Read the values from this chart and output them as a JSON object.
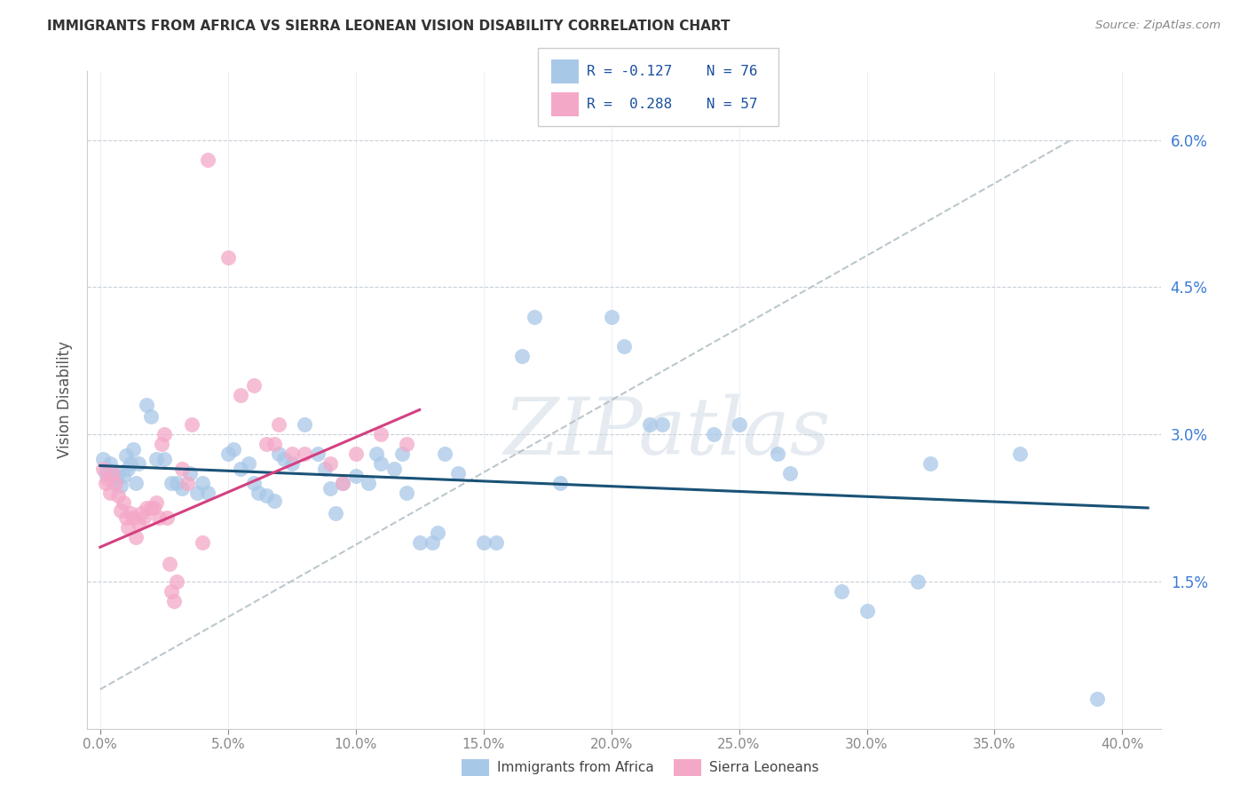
{
  "title": "IMMIGRANTS FROM AFRICA VS SIERRA LEONEAN VISION DISABILITY CORRELATION CHART",
  "source": "Source: ZipAtlas.com",
  "xlabel_ticks": [
    "0.0%",
    "5.0%",
    "10.0%",
    "15.0%",
    "20.0%",
    "25.0%",
    "30.0%",
    "35.0%",
    "40.0%"
  ],
  "xlabel_vals": [
    0.0,
    0.05,
    0.1,
    0.15,
    0.2,
    0.25,
    0.3,
    0.35,
    0.4
  ],
  "ylabel_ticks": [
    "1.5%",
    "3.0%",
    "4.5%",
    "6.0%"
  ],
  "ylabel_vals": [
    0.015,
    0.03,
    0.045,
    0.06
  ],
  "ylabel_label": "Vision Disability",
  "xlim": [
    -0.005,
    0.415
  ],
  "ylim": [
    0.0,
    0.067
  ],
  "watermark": "ZIPatlas",
  "blue_color": "#a8c8e8",
  "pink_color": "#f4a8c8",
  "trendline_blue_color": "#1a5276",
  "trendline_pink_color": "#d44080",
  "trendline_dashed_color": "#b0bec5",
  "blue_trendline": [
    [
      0.0,
      0.0268
    ],
    [
      0.41,
      0.0225
    ]
  ],
  "pink_trendline": [
    [
      0.0,
      0.0185
    ],
    [
      0.125,
      0.0325
    ]
  ],
  "dashed_line": [
    [
      0.0,
      0.004
    ],
    [
      0.38,
      0.06
    ]
  ],
  "blue_scatter": [
    [
      0.001,
      0.0275
    ],
    [
      0.002,
      0.026
    ],
    [
      0.003,
      0.0265
    ],
    [
      0.004,
      0.027
    ],
    [
      0.005,
      0.026
    ],
    [
      0.006,
      0.0255
    ],
    [
      0.007,
      0.026
    ],
    [
      0.008,
      0.0248
    ],
    [
      0.009,
      0.0258
    ],
    [
      0.01,
      0.0278
    ],
    [
      0.011,
      0.0265
    ],
    [
      0.012,
      0.027
    ],
    [
      0.013,
      0.0285
    ],
    [
      0.014,
      0.025
    ],
    [
      0.015,
      0.027
    ],
    [
      0.018,
      0.033
    ],
    [
      0.02,
      0.0318
    ],
    [
      0.022,
      0.0275
    ],
    [
      0.025,
      0.0275
    ],
    [
      0.028,
      0.025
    ],
    [
      0.03,
      0.025
    ],
    [
      0.032,
      0.0245
    ],
    [
      0.035,
      0.026
    ],
    [
      0.038,
      0.024
    ],
    [
      0.04,
      0.025
    ],
    [
      0.042,
      0.024
    ],
    [
      0.05,
      0.028
    ],
    [
      0.052,
      0.0285
    ],
    [
      0.055,
      0.0265
    ],
    [
      0.058,
      0.027
    ],
    [
      0.06,
      0.025
    ],
    [
      0.062,
      0.024
    ],
    [
      0.065,
      0.0238
    ],
    [
      0.068,
      0.0232
    ],
    [
      0.07,
      0.028
    ],
    [
      0.072,
      0.0275
    ],
    [
      0.075,
      0.027
    ],
    [
      0.08,
      0.031
    ],
    [
      0.085,
      0.028
    ],
    [
      0.088,
      0.0265
    ],
    [
      0.09,
      0.0245
    ],
    [
      0.092,
      0.022
    ],
    [
      0.095,
      0.025
    ],
    [
      0.1,
      0.0258
    ],
    [
      0.105,
      0.025
    ],
    [
      0.108,
      0.028
    ],
    [
      0.11,
      0.027
    ],
    [
      0.115,
      0.0265
    ],
    [
      0.118,
      0.028
    ],
    [
      0.12,
      0.024
    ],
    [
      0.125,
      0.019
    ],
    [
      0.13,
      0.019
    ],
    [
      0.132,
      0.02
    ],
    [
      0.135,
      0.028
    ],
    [
      0.14,
      0.026
    ],
    [
      0.15,
      0.019
    ],
    [
      0.155,
      0.019
    ],
    [
      0.165,
      0.038
    ],
    [
      0.17,
      0.042
    ],
    [
      0.18,
      0.025
    ],
    [
      0.2,
      0.042
    ],
    [
      0.205,
      0.039
    ],
    [
      0.215,
      0.031
    ],
    [
      0.22,
      0.031
    ],
    [
      0.24,
      0.03
    ],
    [
      0.25,
      0.031
    ],
    [
      0.265,
      0.028
    ],
    [
      0.27,
      0.026
    ],
    [
      0.29,
      0.014
    ],
    [
      0.3,
      0.012
    ],
    [
      0.32,
      0.015
    ],
    [
      0.325,
      0.027
    ],
    [
      0.36,
      0.028
    ],
    [
      0.39,
      0.003
    ]
  ],
  "pink_scatter": [
    [
      0.001,
      0.0265
    ],
    [
      0.002,
      0.025
    ],
    [
      0.003,
      0.0255
    ],
    [
      0.004,
      0.024
    ],
    [
      0.005,
      0.026
    ],
    [
      0.006,
      0.025
    ],
    [
      0.007,
      0.0238
    ],
    [
      0.008,
      0.0222
    ],
    [
      0.009,
      0.023
    ],
    [
      0.01,
      0.0215
    ],
    [
      0.011,
      0.0205
    ],
    [
      0.012,
      0.022
    ],
    [
      0.013,
      0.0215
    ],
    [
      0.014,
      0.0195
    ],
    [
      0.015,
      0.021
    ],
    [
      0.016,
      0.022
    ],
    [
      0.017,
      0.0215
    ],
    [
      0.018,
      0.0225
    ],
    [
      0.02,
      0.0225
    ],
    [
      0.021,
      0.0225
    ],
    [
      0.022,
      0.023
    ],
    [
      0.023,
      0.0215
    ],
    [
      0.024,
      0.029
    ],
    [
      0.025,
      0.03
    ],
    [
      0.026,
      0.0215
    ],
    [
      0.027,
      0.0168
    ],
    [
      0.028,
      0.014
    ],
    [
      0.029,
      0.013
    ],
    [
      0.03,
      0.015
    ],
    [
      0.032,
      0.0265
    ],
    [
      0.034,
      0.025
    ],
    [
      0.036,
      0.031
    ],
    [
      0.04,
      0.019
    ],
    [
      0.042,
      0.058
    ],
    [
      0.05,
      0.048
    ],
    [
      0.055,
      0.034
    ],
    [
      0.06,
      0.035
    ],
    [
      0.065,
      0.029
    ],
    [
      0.068,
      0.029
    ],
    [
      0.07,
      0.031
    ],
    [
      0.075,
      0.028
    ],
    [
      0.08,
      0.028
    ],
    [
      0.09,
      0.027
    ],
    [
      0.095,
      0.025
    ],
    [
      0.1,
      0.028
    ],
    [
      0.11,
      0.03
    ],
    [
      0.12,
      0.029
    ]
  ]
}
